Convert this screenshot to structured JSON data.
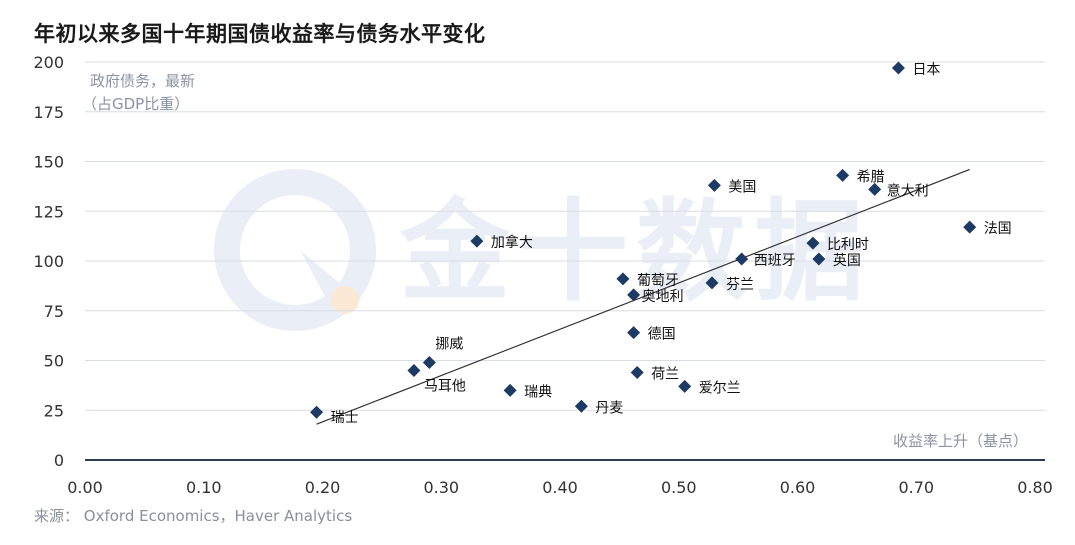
{
  "title": "年初以来多国十年期国债收益率与债务水平变化",
  "source": "来源： Oxford Economics，Haver Analytics",
  "watermark": "金十数据",
  "colors": {
    "marker": "#1d3a64",
    "grid": "#d9dde6",
    "trend": "#333333",
    "axis": "#2c3e55",
    "watermark": "#e7edf7"
  },
  "chart_data": {
    "type": "scatter",
    "title": "年初以来多国十年期国债收益率与债务水平变化",
    "ylabel_line1": "政府债务，最新",
    "ylabel_line2": "（占GDP比重）",
    "xlabel": "收益率上升（基点）",
    "xlim": [
      0,
      0.8
    ],
    "ylim": [
      0,
      200
    ],
    "x_ticks": [
      "0.00",
      "0.10",
      "0.20",
      "0.30",
      "0.40",
      "0.50",
      "0.60",
      "0.70",
      "0.80"
    ],
    "y_ticks": [
      "0",
      "25",
      "50",
      "75",
      "100",
      "125",
      "150",
      "175",
      "200"
    ],
    "grid": "horizontal",
    "points": [
      {
        "name": "日本",
        "x": 0.685,
        "y": 197
      },
      {
        "name": "希腊",
        "x": 0.638,
        "y": 143
      },
      {
        "name": "意大利",
        "x": 0.665,
        "y": 136
      },
      {
        "name": "美国",
        "x": 0.53,
        "y": 138
      },
      {
        "name": "法国",
        "x": 0.745,
        "y": 117
      },
      {
        "name": "加拿大",
        "x": 0.33,
        "y": 110
      },
      {
        "name": "比利时",
        "x": 0.613,
        "y": 109
      },
      {
        "name": "西班牙",
        "x": 0.553,
        "y": 101
      },
      {
        "name": "英国",
        "x": 0.618,
        "y": 101
      },
      {
        "name": "葡萄牙",
        "x": 0.453,
        "y": 91
      },
      {
        "name": "芬兰",
        "x": 0.528,
        "y": 89
      },
      {
        "name": "奥地利",
        "x": 0.462,
        "y": 83
      },
      {
        "name": "德国",
        "x": 0.462,
        "y": 64
      },
      {
        "name": "挪威",
        "x": 0.29,
        "y": 49
      },
      {
        "name": "马耳他",
        "x": 0.277,
        "y": 45
      },
      {
        "name": "荷兰",
        "x": 0.465,
        "y": 44
      },
      {
        "name": "爱尔兰",
        "x": 0.505,
        "y": 37
      },
      {
        "name": "瑞典",
        "x": 0.358,
        "y": 35
      },
      {
        "name": "丹麦",
        "x": 0.418,
        "y": 27
      },
      {
        "name": "瑞士",
        "x": 0.195,
        "y": 24
      }
    ],
    "trendline": {
      "x": [
        0.195,
        0.745
      ],
      "y": [
        18,
        146
      ]
    }
  }
}
